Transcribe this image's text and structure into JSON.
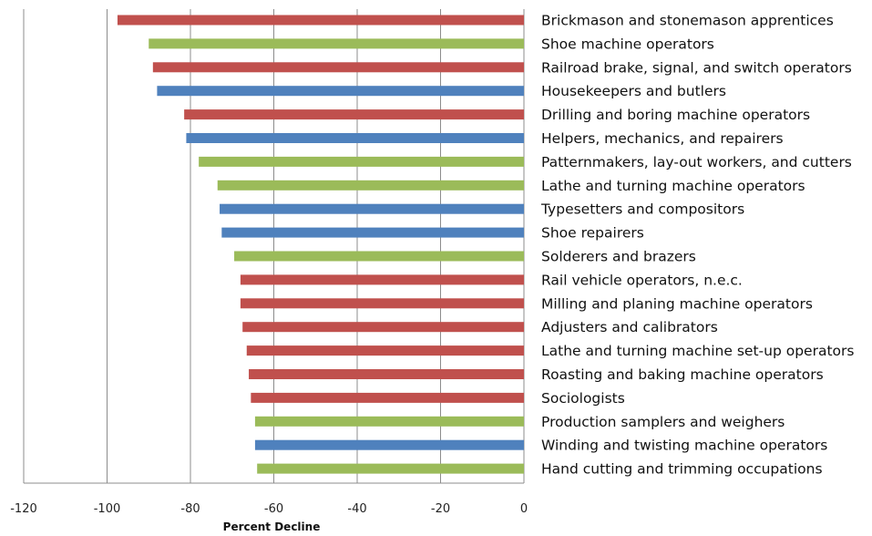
{
  "chart_data": {
    "type": "bar",
    "orientation": "horizontal",
    "title": "",
    "xlabel": "Percent Decline",
    "ylabel": "",
    "xlim": [
      -120,
      0
    ],
    "xticks": [
      -120,
      -100,
      -80,
      -60,
      -40,
      -20,
      0
    ],
    "grid": "vertical",
    "legend": "none",
    "colors": {
      "red": "#c0504d",
      "green": "#9bbb59",
      "blue": "#4f81bd"
    },
    "categories": [
      "Brickmason and stonemason apprentices",
      "Shoe machine operators",
      "Railroad brake, signal, and switch operators",
      "Housekeepers and butlers",
      "Drilling and boring machine operators",
      "Helpers, mechanics, and repairers",
      "Patternmakers, lay-out workers, and cutters",
      "Lathe and turning machine operators",
      "Typesetters and compositors",
      "Shoe repairers",
      "Solderers and brazers",
      "Rail vehicle operators, n.e.c.",
      "Milling and planing machine operators",
      "Adjusters and calibrators",
      "Lathe and turning machine set-up operators",
      "Roasting and baking machine operators",
      "Sociologists",
      "Production samplers and weighers",
      "Winding and twisting machine operators",
      "Hand cutting and trimming occupations"
    ],
    "values": [
      -97.5,
      -90,
      -89,
      -88,
      -81.5,
      -81,
      -78,
      -73.5,
      -73,
      -72.5,
      -69.5,
      -68,
      -68,
      -67.5,
      -66.5,
      -66,
      -65.5,
      -64.5,
      -64.5,
      -64
    ],
    "bar_colors": [
      "red",
      "green",
      "red",
      "blue",
      "red",
      "blue",
      "green",
      "green",
      "blue",
      "blue",
      "green",
      "red",
      "red",
      "red",
      "red",
      "red",
      "red",
      "green",
      "blue",
      "green"
    ]
  }
}
